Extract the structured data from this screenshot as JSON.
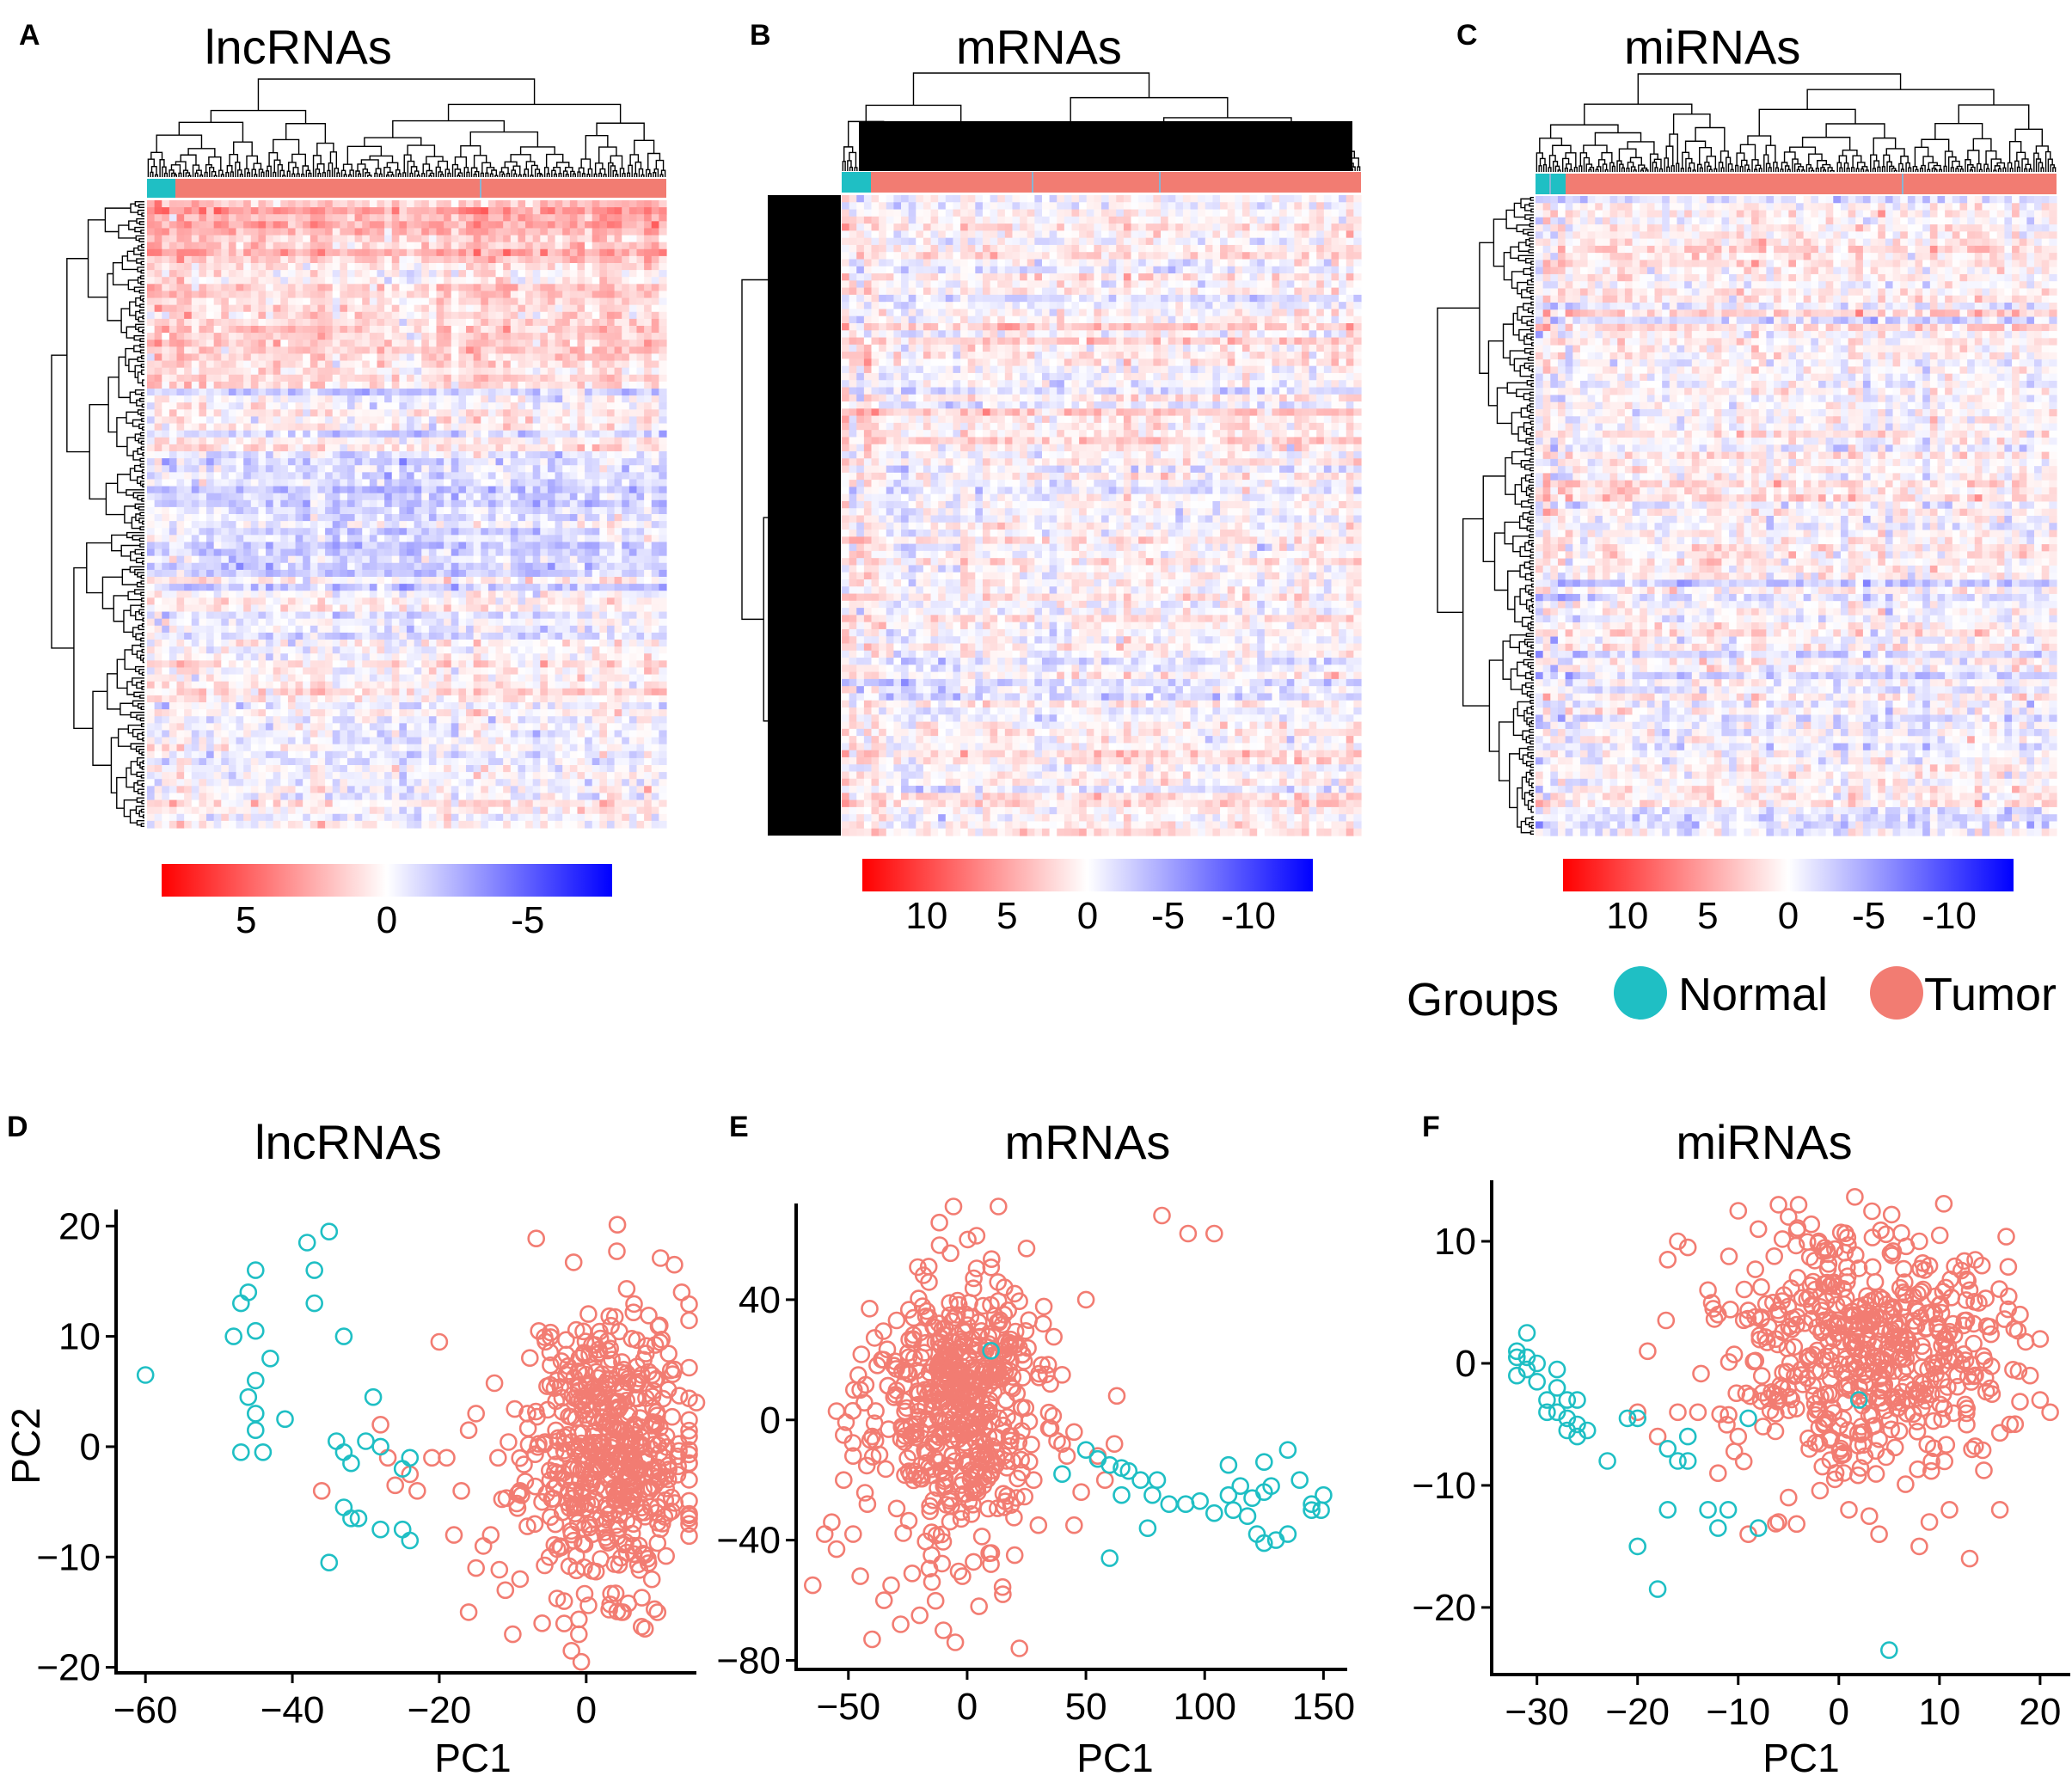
{
  "figure": {
    "heatmaps": [
      {
        "panel": "A",
        "title": "lncRNAs",
        "colorbar_ticks": [
          "5",
          "0",
          "-5"
        ],
        "colorbar_values": [
          5,
          0,
          -5
        ],
        "colorbar_range": [
          8,
          -8
        ]
      },
      {
        "panel": "B",
        "title": "mRNAs",
        "colorbar_ticks": [
          "10",
          "5",
          "0",
          "-5",
          "-10"
        ],
        "colorbar_values": [
          10,
          5,
          0,
          -5,
          -10
        ],
        "colorbar_range": [
          14,
          -14
        ]
      },
      {
        "panel": "C",
        "title": "miRNAs",
        "colorbar_ticks": [
          "10",
          "5",
          "0",
          "-5",
          "-10"
        ],
        "colorbar_values": [
          10,
          5,
          0,
          -5,
          -10
        ],
        "colorbar_range": [
          14,
          -14
        ]
      }
    ],
    "legend": {
      "title": "Groups",
      "items": [
        {
          "label": "Normal",
          "color": "#1fbfc4"
        },
        {
          "label": "Tumor",
          "color": "#f27c72"
        }
      ]
    },
    "colors": {
      "normal": "#1fbfc4",
      "tumor": "#f27c72",
      "high": "#ff0000",
      "mid": "#ffffff",
      "low": "#0000ff"
    }
  },
  "chart_data": [
    {
      "panel": "D",
      "type": "scatter",
      "title": "lncRNAs",
      "xlabel": "PC1",
      "ylabel": "PC2",
      "xlim": [
        -64,
        15
      ],
      "ylim": [
        -20.5,
        21.5
      ],
      "xticks": [
        -60,
        -40,
        -20,
        0
      ],
      "yticks": [
        20,
        10,
        0,
        -10,
        -20
      ],
      "xtick_labels": [
        "−60",
        "−40",
        "−20",
        "0"
      ],
      "ytick_labels": [
        "20",
        "10",
        "0",
        "−10",
        "−20"
      ],
      "series": [
        {
          "name": "Normal",
          "points": [
            [
              -60,
              6.5
            ],
            [
              -48,
              10
            ],
            [
              -47,
              13
            ],
            [
              -45,
              16
            ],
            [
              -46,
              14
            ],
            [
              -45,
              10.5
            ],
            [
              -43,
              8
            ],
            [
              -45,
              6
            ],
            [
              -46,
              4.5
            ],
            [
              -45,
              3
            ],
            [
              -41,
              2.5
            ],
            [
              -45,
              1.5
            ],
            [
              -47,
              -0.5
            ],
            [
              -44,
              -0.5
            ],
            [
              -38,
              18.5
            ],
            [
              -35,
              19.5
            ],
            [
              -37,
              16
            ],
            [
              -37,
              13
            ],
            [
              -33,
              10
            ],
            [
              -29,
              4.5
            ],
            [
              -34,
              0.5
            ],
            [
              -33,
              -0.5
            ],
            [
              -32,
              -1.5
            ],
            [
              -30,
              0.5
            ],
            [
              -28,
              0
            ],
            [
              -24,
              -1
            ],
            [
              -25,
              -2
            ],
            [
              -33,
              -5.5
            ],
            [
              -31,
              -6.5
            ],
            [
              -32,
              -6.5
            ],
            [
              -28,
              -7.5
            ],
            [
              -25,
              -7.5
            ],
            [
              -24,
              -8.5
            ],
            [
              -35,
              -10.5
            ]
          ]
        },
        {
          "name": "Tumor",
          "cluster": {
            "cx": 3,
            "cy": 0,
            "sx": 5.5,
            "sy": 6.5,
            "n": 520,
            "seed": 11
          },
          "points": [
            [
              -20,
              9.5
            ],
            [
              -18,
              -8
            ],
            [
              -19,
              -1
            ],
            [
              -17,
              -4
            ],
            [
              -12,
              -1
            ],
            [
              -15,
              -11
            ],
            [
              -13,
              -8
            ],
            [
              -16,
              -15
            ],
            [
              -10,
              -17
            ],
            [
              -7,
              -7
            ],
            [
              -9,
              -4
            ],
            [
              -15,
              3
            ],
            [
              -16,
              1.5
            ],
            [
              -8,
              3
            ],
            [
              -5,
              -10
            ],
            [
              -26,
              -3.5
            ],
            [
              -24,
              -2.5
            ],
            [
              -27,
              -1
            ],
            [
              -28,
              2
            ],
            [
              -36,
              -4
            ],
            [
              -14,
              -9
            ],
            [
              -11,
              -13
            ],
            [
              -3,
              -14
            ],
            [
              12,
              16.5
            ],
            [
              13,
              14
            ],
            [
              12,
              7
            ],
            [
              10,
              11
            ],
            [
              -4,
              6
            ],
            [
              -21,
              -1
            ],
            [
              -23,
              -4
            ],
            [
              -6,
              -16
            ],
            [
              -2,
              -18.5
            ],
            [
              5,
              -15
            ],
            [
              8,
              -16.5
            ],
            [
              -1,
              -17
            ],
            [
              14,
              -3
            ],
            [
              15,
              4
            ],
            [
              -9,
              -12
            ]
          ]
        }
      ]
    },
    {
      "panel": "E",
      "type": "scatter",
      "title": "mRNAs",
      "xlabel": "PC1",
      "ylabel": "",
      "xlim": [
        -72,
        160
      ],
      "ylim": [
        -83,
        72
      ],
      "xticks": [
        -50,
        0,
        50,
        100,
        150
      ],
      "yticks": [
        40,
        0,
        -40,
        -80
      ],
      "xtick_labels": [
        "−50",
        "0",
        "50",
        "100",
        "150"
      ],
      "ytick_labels": [
        "40",
        "0",
        "−40",
        "−80"
      ],
      "series": [
        {
          "name": "Normal",
          "points": [
            [
              10,
              23
            ],
            [
              40,
              -18
            ],
            [
              50,
              -10
            ],
            [
              55,
              -13
            ],
            [
              60,
              -15
            ],
            [
              65,
              -16
            ],
            [
              68,
              -17
            ],
            [
              73,
              -20
            ],
            [
              80,
              -20
            ],
            [
              65,
              -25
            ],
            [
              78,
              -25
            ],
            [
              85,
              -28
            ],
            [
              92,
              -28
            ],
            [
              98,
              -27
            ],
            [
              110,
              -25
            ],
            [
              110,
              -15
            ],
            [
              115,
              -22
            ],
            [
              120,
              -26
            ],
            [
              125,
              -24
            ],
            [
              125,
              -14
            ],
            [
              128,
              -22
            ],
            [
              135,
              -10
            ],
            [
              140,
              -20
            ],
            [
              145,
              -28
            ],
            [
              150,
              -25
            ],
            [
              149,
              -30
            ],
            [
              145,
              -30
            ],
            [
              118,
              -32
            ],
            [
              122,
              -38
            ],
            [
              125,
              -41
            ],
            [
              130,
              -40
            ],
            [
              135,
              -38
            ],
            [
              104,
              -31
            ],
            [
              112,
              -30
            ],
            [
              76,
              -36
            ],
            [
              60,
              -46
            ]
          ]
        },
        {
          "name": "Tumor",
          "cluster": {
            "cx": -5,
            "cy": 5,
            "sx": 17,
            "sy": 22,
            "n": 520,
            "seed": 23
          },
          "points": [
            [
              82,
              68
            ],
            [
              93,
              62
            ],
            [
              104,
              62
            ],
            [
              50,
              40
            ],
            [
              32,
              32
            ],
            [
              20,
              42
            ],
            [
              35,
              12
            ],
            [
              40,
              -8
            ],
            [
              42,
              -12
            ],
            [
              48,
              -24
            ],
            [
              45,
              -35
            ],
            [
              55,
              -12
            ],
            [
              58,
              -20
            ],
            [
              62,
              -8
            ],
            [
              63,
              8
            ],
            [
              40,
              15
            ],
            [
              -60,
              -38
            ],
            [
              -65,
              -55
            ],
            [
              -57,
              -34
            ],
            [
              -55,
              -43
            ],
            [
              -52,
              -20
            ],
            [
              -48,
              -38
            ],
            [
              -45,
              -52
            ],
            [
              -40,
              -73
            ],
            [
              -35,
              -60
            ],
            [
              -32,
              -55
            ],
            [
              -28,
              -68
            ],
            [
              -20,
              -65
            ],
            [
              -15,
              -45
            ],
            [
              -10,
              -70
            ],
            [
              -2,
              -52
            ],
            [
              5,
              -62
            ],
            [
              -5,
              -74
            ],
            [
              22,
              -76
            ],
            [
              15,
              -58
            ],
            [
              10,
              -48
            ],
            [
              20,
              -45
            ],
            [
              30,
              -35
            ],
            [
              -42,
              -28
            ],
            [
              -48,
              -12
            ],
            [
              -45,
              10
            ],
            [
              -52,
              -5
            ],
            [
              45,
              -4
            ],
            [
              28,
              -20
            ]
          ]
        }
      ]
    },
    {
      "panel": "F",
      "type": "scatter",
      "title": "miRNAs",
      "xlabel": "PC1",
      "ylabel": "",
      "xlim": [
        -34.5,
        23
      ],
      "ylim": [
        -25.5,
        15
      ],
      "xticks": [
        -30,
        -20,
        -10,
        0,
        10,
        20
      ],
      "yticks": [
        10,
        0,
        -10,
        -20
      ],
      "xtick_labels": [
        "−30",
        "−20",
        "−10",
        "0",
        "10",
        "20"
      ],
      "ytick_labels": [
        "10",
        "0",
        "−10",
        "−20"
      ],
      "series": [
        {
          "name": "Normal",
          "points": [
            [
              -32,
              1
            ],
            [
              -31,
              2.5
            ],
            [
              -31,
              0.5
            ],
            [
              -32,
              0.5
            ],
            [
              -30,
              0
            ],
            [
              -31,
              -0.5
            ],
            [
              -32,
              -1
            ],
            [
              -30,
              -1.5
            ],
            [
              -28,
              -0.5
            ],
            [
              -28,
              -2
            ],
            [
              -29,
              -3
            ],
            [
              -27,
              -3
            ],
            [
              -28,
              -4
            ],
            [
              -29,
              -4
            ],
            [
              -26,
              -3
            ],
            [
              -27,
              -4.5
            ],
            [
              -26,
              -5
            ],
            [
              -27,
              -5.5
            ],
            [
              -25,
              -5.5
            ],
            [
              -26,
              -6
            ],
            [
              -23,
              -8
            ],
            [
              -21,
              -4.5
            ],
            [
              -20,
              -4.5
            ],
            [
              -20,
              -15
            ],
            [
              -18,
              -18.5
            ],
            [
              -17,
              -7
            ],
            [
              -16,
              -8
            ],
            [
              -15,
              -8
            ],
            [
              -15,
              -6
            ],
            [
              -13,
              -12
            ],
            [
              -12,
              -13.5
            ],
            [
              -11,
              -12
            ],
            [
              -9,
              -4.5
            ],
            [
              -8,
              -13.5
            ],
            [
              -17,
              -12
            ],
            [
              5,
              -23.5
            ],
            [
              2,
              -3
            ]
          ]
        },
        {
          "name": "Tumor",
          "cluster": {
            "cx": 3,
            "cy": 1.5,
            "sx": 6.5,
            "sy": 5,
            "n": 520,
            "seed": 37
          },
          "points": [
            [
              -16,
              10
            ],
            [
              -17,
              8.5
            ],
            [
              -15,
              9.5
            ],
            [
              -10,
              12.5
            ],
            [
              -8,
              11
            ],
            [
              -13,
              6
            ],
            [
              -12,
              4
            ],
            [
              -19,
              1
            ],
            [
              -16,
              -4
            ],
            [
              -18,
              -6
            ],
            [
              -20,
              -4
            ],
            [
              -14,
              -4
            ],
            [
              -12,
              -9
            ],
            [
              -10,
              -6
            ],
            [
              -9,
              -14
            ],
            [
              -5,
              -11
            ],
            [
              -6,
              -13
            ],
            [
              1,
              -12
            ],
            [
              4,
              -14
            ],
            [
              8,
              -15
            ],
            [
              9,
              -13
            ],
            [
              11,
              -12
            ],
            [
              13,
              -16
            ],
            [
              16,
              -12
            ],
            [
              17,
              -5
            ],
            [
              19,
              -1
            ],
            [
              20,
              -3
            ],
            [
              21,
              -4
            ],
            [
              20,
              2
            ],
            [
              18,
              4
            ],
            [
              -6,
              13
            ],
            [
              -5,
              12
            ],
            [
              -4,
              13
            ],
            [
              -2,
              10
            ],
            [
              8,
              10
            ],
            [
              9,
              8
            ],
            [
              13,
              6
            ],
            [
              15,
              3
            ]
          ]
        }
      ]
    }
  ]
}
